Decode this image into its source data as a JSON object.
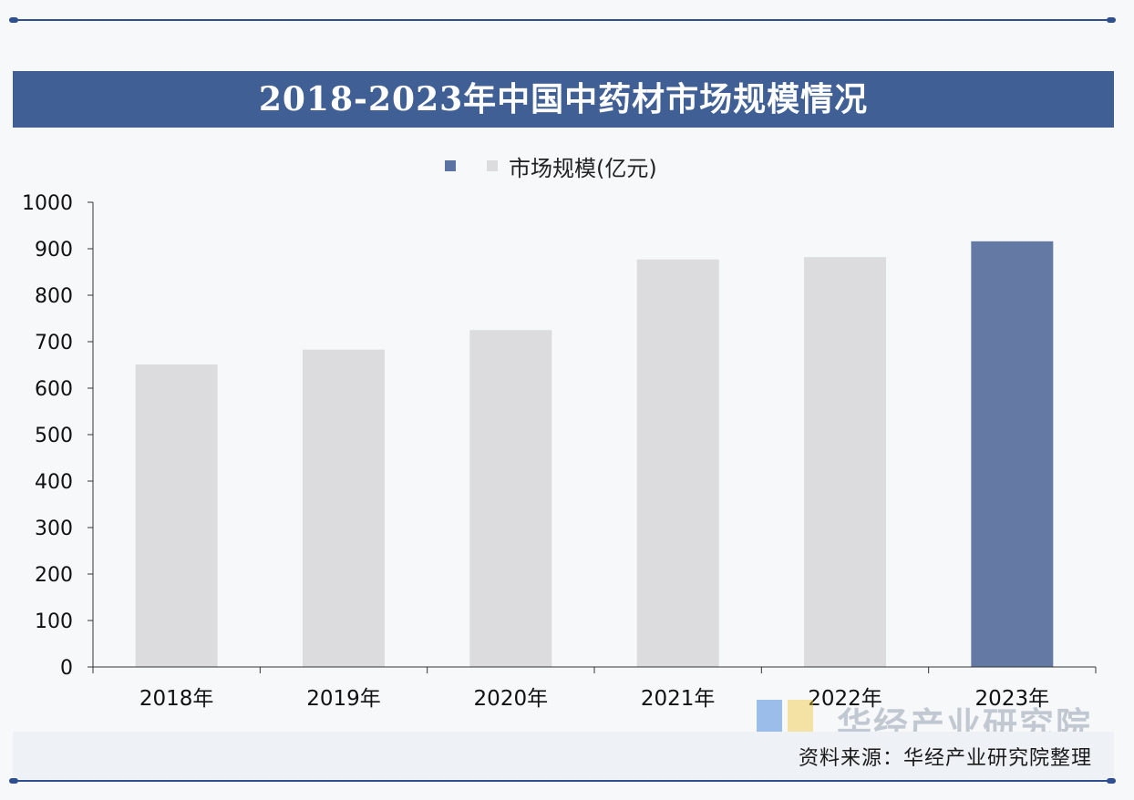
{
  "title": "2018-2023年中国中药材市场规模情况",
  "legend": {
    "label": "市场规模(亿元)"
  },
  "source": "资料来源：华经产业研究院整理",
  "watermark": "华经产业研究院",
  "colors": {
    "frame_rule": "#2f4f8f",
    "title_band": "#3f5f95",
    "bar_gray": "#dcdcde",
    "bar_highlight": "#6479a3",
    "legend_dark": "#5a73a0",
    "legend_light": "#dcdcde",
    "axis": "#333333"
  },
  "chart_data": {
    "type": "bar",
    "title": "2018-2023年中国中药材市场规模情况",
    "categories": [
      "2018年",
      "2019年",
      "2020年",
      "2021年",
      "2022年",
      "2023年"
    ],
    "series": [
      {
        "name": "市场规模(亿元)",
        "values": [
          651,
          683,
          725,
          877,
          882,
          916
        ]
      }
    ],
    "highlight_index": 5,
    "yticks": [
      0,
      100,
      200,
      300,
      400,
      500,
      600,
      700,
      800,
      900,
      1000
    ],
    "ylim": [
      0,
      1000
    ],
    "xlabel": "",
    "ylabel": "",
    "grid": false,
    "legend_position": "top-center"
  }
}
